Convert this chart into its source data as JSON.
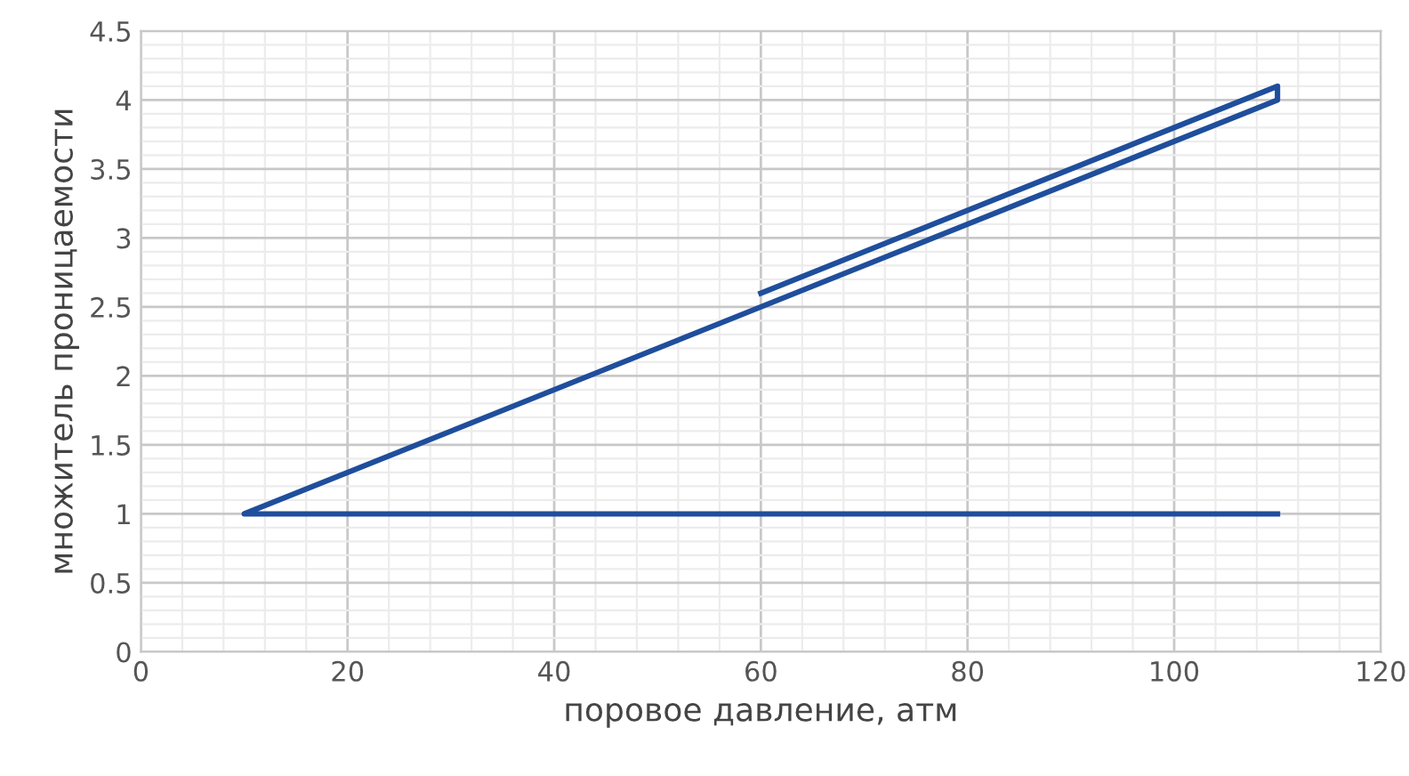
{
  "chart_data": {
    "type": "line",
    "xlabel": "поровое давление, атм",
    "ylabel": "множитель проницаемости",
    "series": [
      {
        "color": "#1f4e9c",
        "x": [
          110,
          10,
          110,
          110,
          60
        ],
        "values": [
          1,
          1,
          4,
          4.1,
          2.6
        ]
      }
    ],
    "xlim": [
      0,
      120
    ],
    "xticks": [
      0,
      20,
      40,
      60,
      80,
      100,
      120
    ],
    "ylim": [
      0,
      4.5
    ],
    "yticks": [
      0,
      0.5,
      1,
      1.5,
      2,
      2.5,
      3,
      3.5,
      4,
      4.5
    ],
    "grid": true,
    "marker": "none",
    "line_style": "solid",
    "legend": false
  }
}
